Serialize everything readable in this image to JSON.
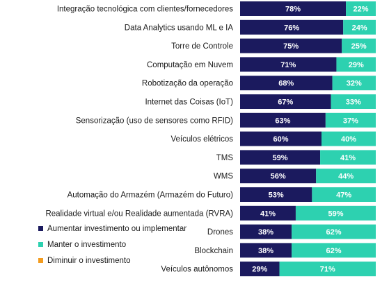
{
  "chart_data": {
    "type": "bar",
    "orientation": "horizontal",
    "stacked": true,
    "categories": [
      "Integração tecnológica com clientes/fornecedores",
      "Data Analytics usando ML e IA",
      "Torre de Controle",
      "Computação em Nuvem",
      "Robotização da operação",
      "Internet das Coisas (IoT)",
      "Sensorização (uso de sensores como RFID)",
      "Veículos elétricos",
      "TMS",
      "WMS",
      "Automação do Armazém (Armazém do Futuro)",
      "Realidade virtual e/ou Realidade aumentada (RVRA)",
      "Drones",
      "Blockchain",
      "Veículos autônomos"
    ],
    "series": [
      {
        "name": "Aumentar investimento ou implementar",
        "color": "#1b1a5e",
        "values": [
          78,
          76,
          75,
          71,
          68,
          67,
          63,
          60,
          59,
          56,
          53,
          41,
          38,
          38,
          29
        ],
        "labels": [
          "78%",
          "76%",
          "75%",
          "71%",
          "68%",
          "67%",
          "63%",
          "60%",
          "59%",
          "56%",
          "53%",
          "41%",
          "38%",
          "38%",
          "29%"
        ]
      },
      {
        "name": "Manter o investimento",
        "color": "#2dd1b0",
        "values": [
          22,
          24,
          25,
          29,
          32,
          33,
          37,
          40,
          41,
          44,
          47,
          59,
          62,
          62,
          71
        ],
        "labels": [
          "22%",
          "24%",
          "25%",
          "29%",
          "32%",
          "33%",
          "37%",
          "40%",
          "41%",
          "44%",
          "47%",
          "59%",
          "62%",
          "62%",
          "71%"
        ]
      },
      {
        "name": "Diminuir o investimento",
        "color": "#f39c1f",
        "values": [
          0,
          0,
          0,
          0,
          0,
          0,
          0,
          0,
          0,
          0,
          0,
          0,
          0,
          0,
          0
        ]
      }
    ],
    "xlim": [
      0,
      100
    ],
    "grid": false,
    "legend_position": "bottom-left"
  },
  "legend": {
    "items": [
      {
        "label": "Aumentar investimento ou implementar",
        "color": "#1b1a5e"
      },
      {
        "label": "Manter o investimento",
        "color": "#2dd1b0"
      },
      {
        "label": "Diminuir o investimento",
        "color": "#f39c1f"
      }
    ]
  }
}
